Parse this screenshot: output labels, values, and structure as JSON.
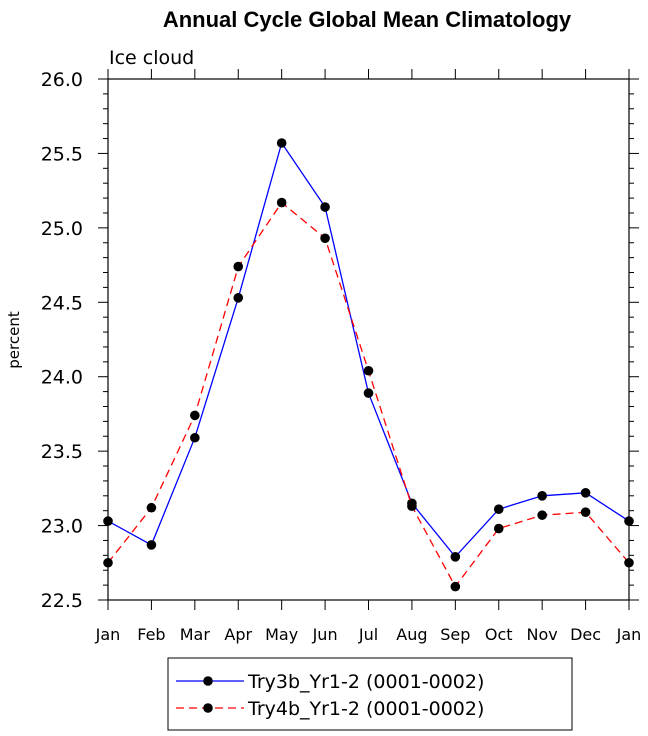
{
  "chart_data": {
    "type": "line",
    "title": "Annual Cycle Global Mean Climatology",
    "subtitle": "Ice cloud",
    "xlabel": "",
    "ylabel": "percent",
    "categories": [
      "Jan",
      "Feb",
      "Mar",
      "Apr",
      "May",
      "Jun",
      "Jul",
      "Aug",
      "Sep",
      "Oct",
      "Nov",
      "Dec",
      "Jan"
    ],
    "ylim": [
      22.5,
      26.0
    ],
    "yticks": [
      "22.5",
      "23.0",
      "23.5",
      "24.0",
      "24.5",
      "25.0",
      "25.5",
      "26.0"
    ],
    "legend_position": "bottom",
    "series": [
      {
        "name": "Try3b_Yr1-2 (0001-0002)",
        "color": "#0000ff",
        "dash": "solid",
        "values": [
          23.03,
          22.87,
          23.59,
          24.53,
          25.57,
          25.14,
          23.89,
          23.15,
          22.79,
          23.11,
          23.2,
          23.22,
          23.03
        ]
      },
      {
        "name": "Try4b_Yr1-2 (0001-0002)",
        "color": "#ff0000",
        "dash": "dashed",
        "values": [
          22.75,
          23.12,
          23.74,
          24.74,
          25.17,
          24.93,
          24.04,
          23.13,
          22.59,
          22.98,
          23.07,
          23.09,
          22.75
        ]
      }
    ]
  }
}
